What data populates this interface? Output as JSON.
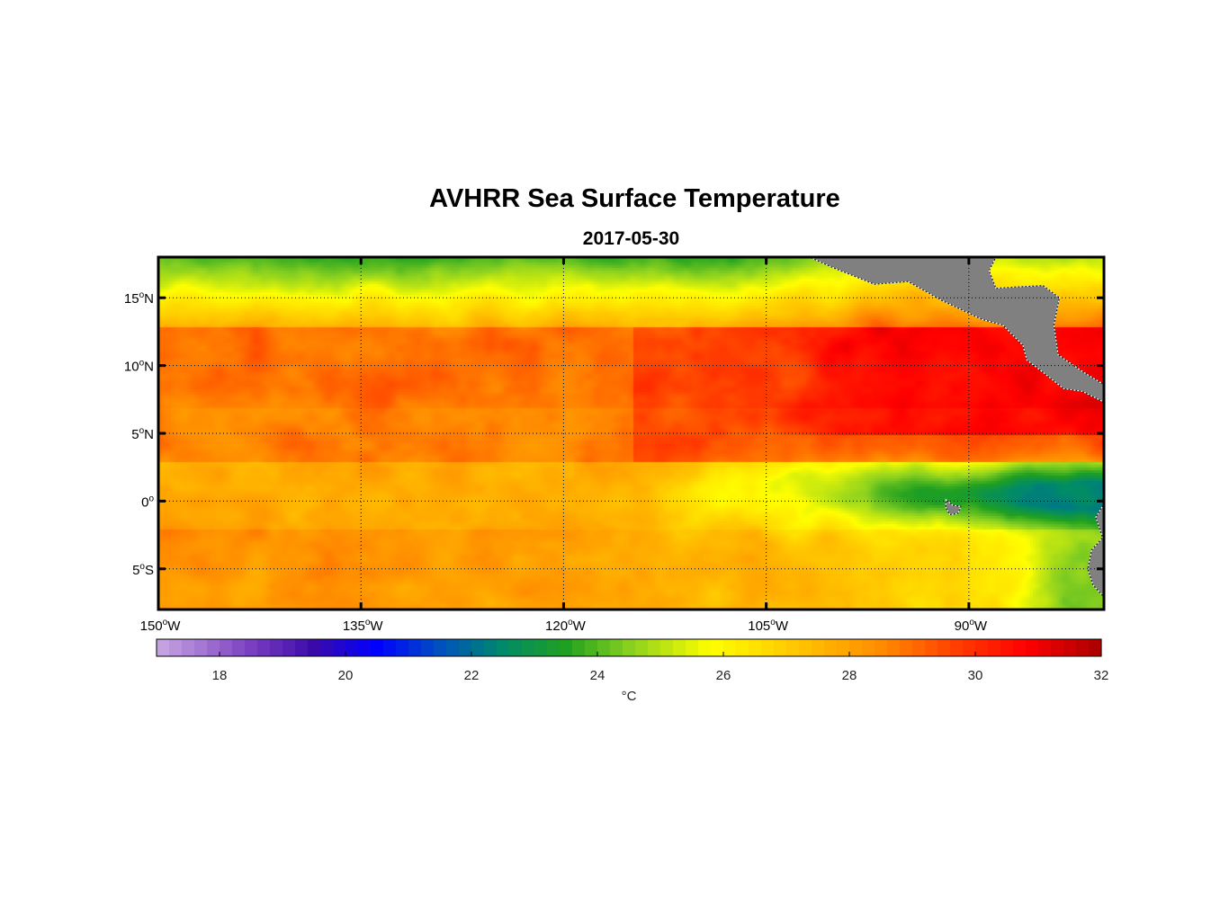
{
  "title": "AVHRR Sea Surface Temperature",
  "subtitle": "2017-05-30",
  "chart_data": {
    "type": "heatmap",
    "title": "AVHRR Sea Surface Temperature",
    "subtitle": "2017-05-30",
    "x_ticks": [
      {
        "value": -150,
        "label": "150",
        "deg": "o",
        "hem": "W"
      },
      {
        "value": -135,
        "label": "135",
        "deg": "o",
        "hem": "W"
      },
      {
        "value": -120,
        "label": "120",
        "deg": "o",
        "hem": "W"
      },
      {
        "value": -105,
        "label": "105",
        "deg": "o",
        "hem": "W"
      },
      {
        "value": -90,
        "label": "90",
        "deg": "o",
        "hem": "W"
      }
    ],
    "y_ticks": [
      {
        "value": 15,
        "label": "15",
        "deg": "o",
        "hem": "N"
      },
      {
        "value": 10,
        "label": "10",
        "deg": "o",
        "hem": "N"
      },
      {
        "value": 5,
        "label": "5",
        "deg": "o",
        "hem": "N"
      },
      {
        "value": 0,
        "label": "0",
        "deg": "o",
        "hem": ""
      },
      {
        "value": -5,
        "label": "5",
        "deg": "o",
        "hem": "S"
      }
    ],
    "xlim": [
      -150,
      -80
    ],
    "ylim": [
      -8,
      18
    ],
    "grid": true,
    "colorbar": {
      "vmin": 17,
      "vmax": 32,
      "ticks": [
        18,
        20,
        22,
        24,
        26,
        28,
        30,
        32
      ],
      "label": "°C",
      "stops": [
        {
          "value": 17,
          "color": "#c9a9e3"
        },
        {
          "value": 18.5,
          "color": "#7a3fc0"
        },
        {
          "value": 19.5,
          "color": "#3a0aa8"
        },
        {
          "value": 20.5,
          "color": "#0000ff"
        },
        {
          "value": 21.5,
          "color": "#0050c0"
        },
        {
          "value": 22.5,
          "color": "#008a6a"
        },
        {
          "value": 23.5,
          "color": "#20a020"
        },
        {
          "value": 24.5,
          "color": "#88d020"
        },
        {
          "value": 25.8,
          "color": "#ffff00"
        },
        {
          "value": 27.2,
          "color": "#ffc400"
        },
        {
          "value": 28.5,
          "color": "#ff8c00"
        },
        {
          "value": 29.8,
          "color": "#ff3800"
        },
        {
          "value": 30.8,
          "color": "#ff0000"
        },
        {
          "value": 32,
          "color": "#a80000"
        }
      ]
    },
    "colors": {
      "land": "#808080",
      "coast": "#ffffff",
      "frame": "#000000"
    }
  }
}
